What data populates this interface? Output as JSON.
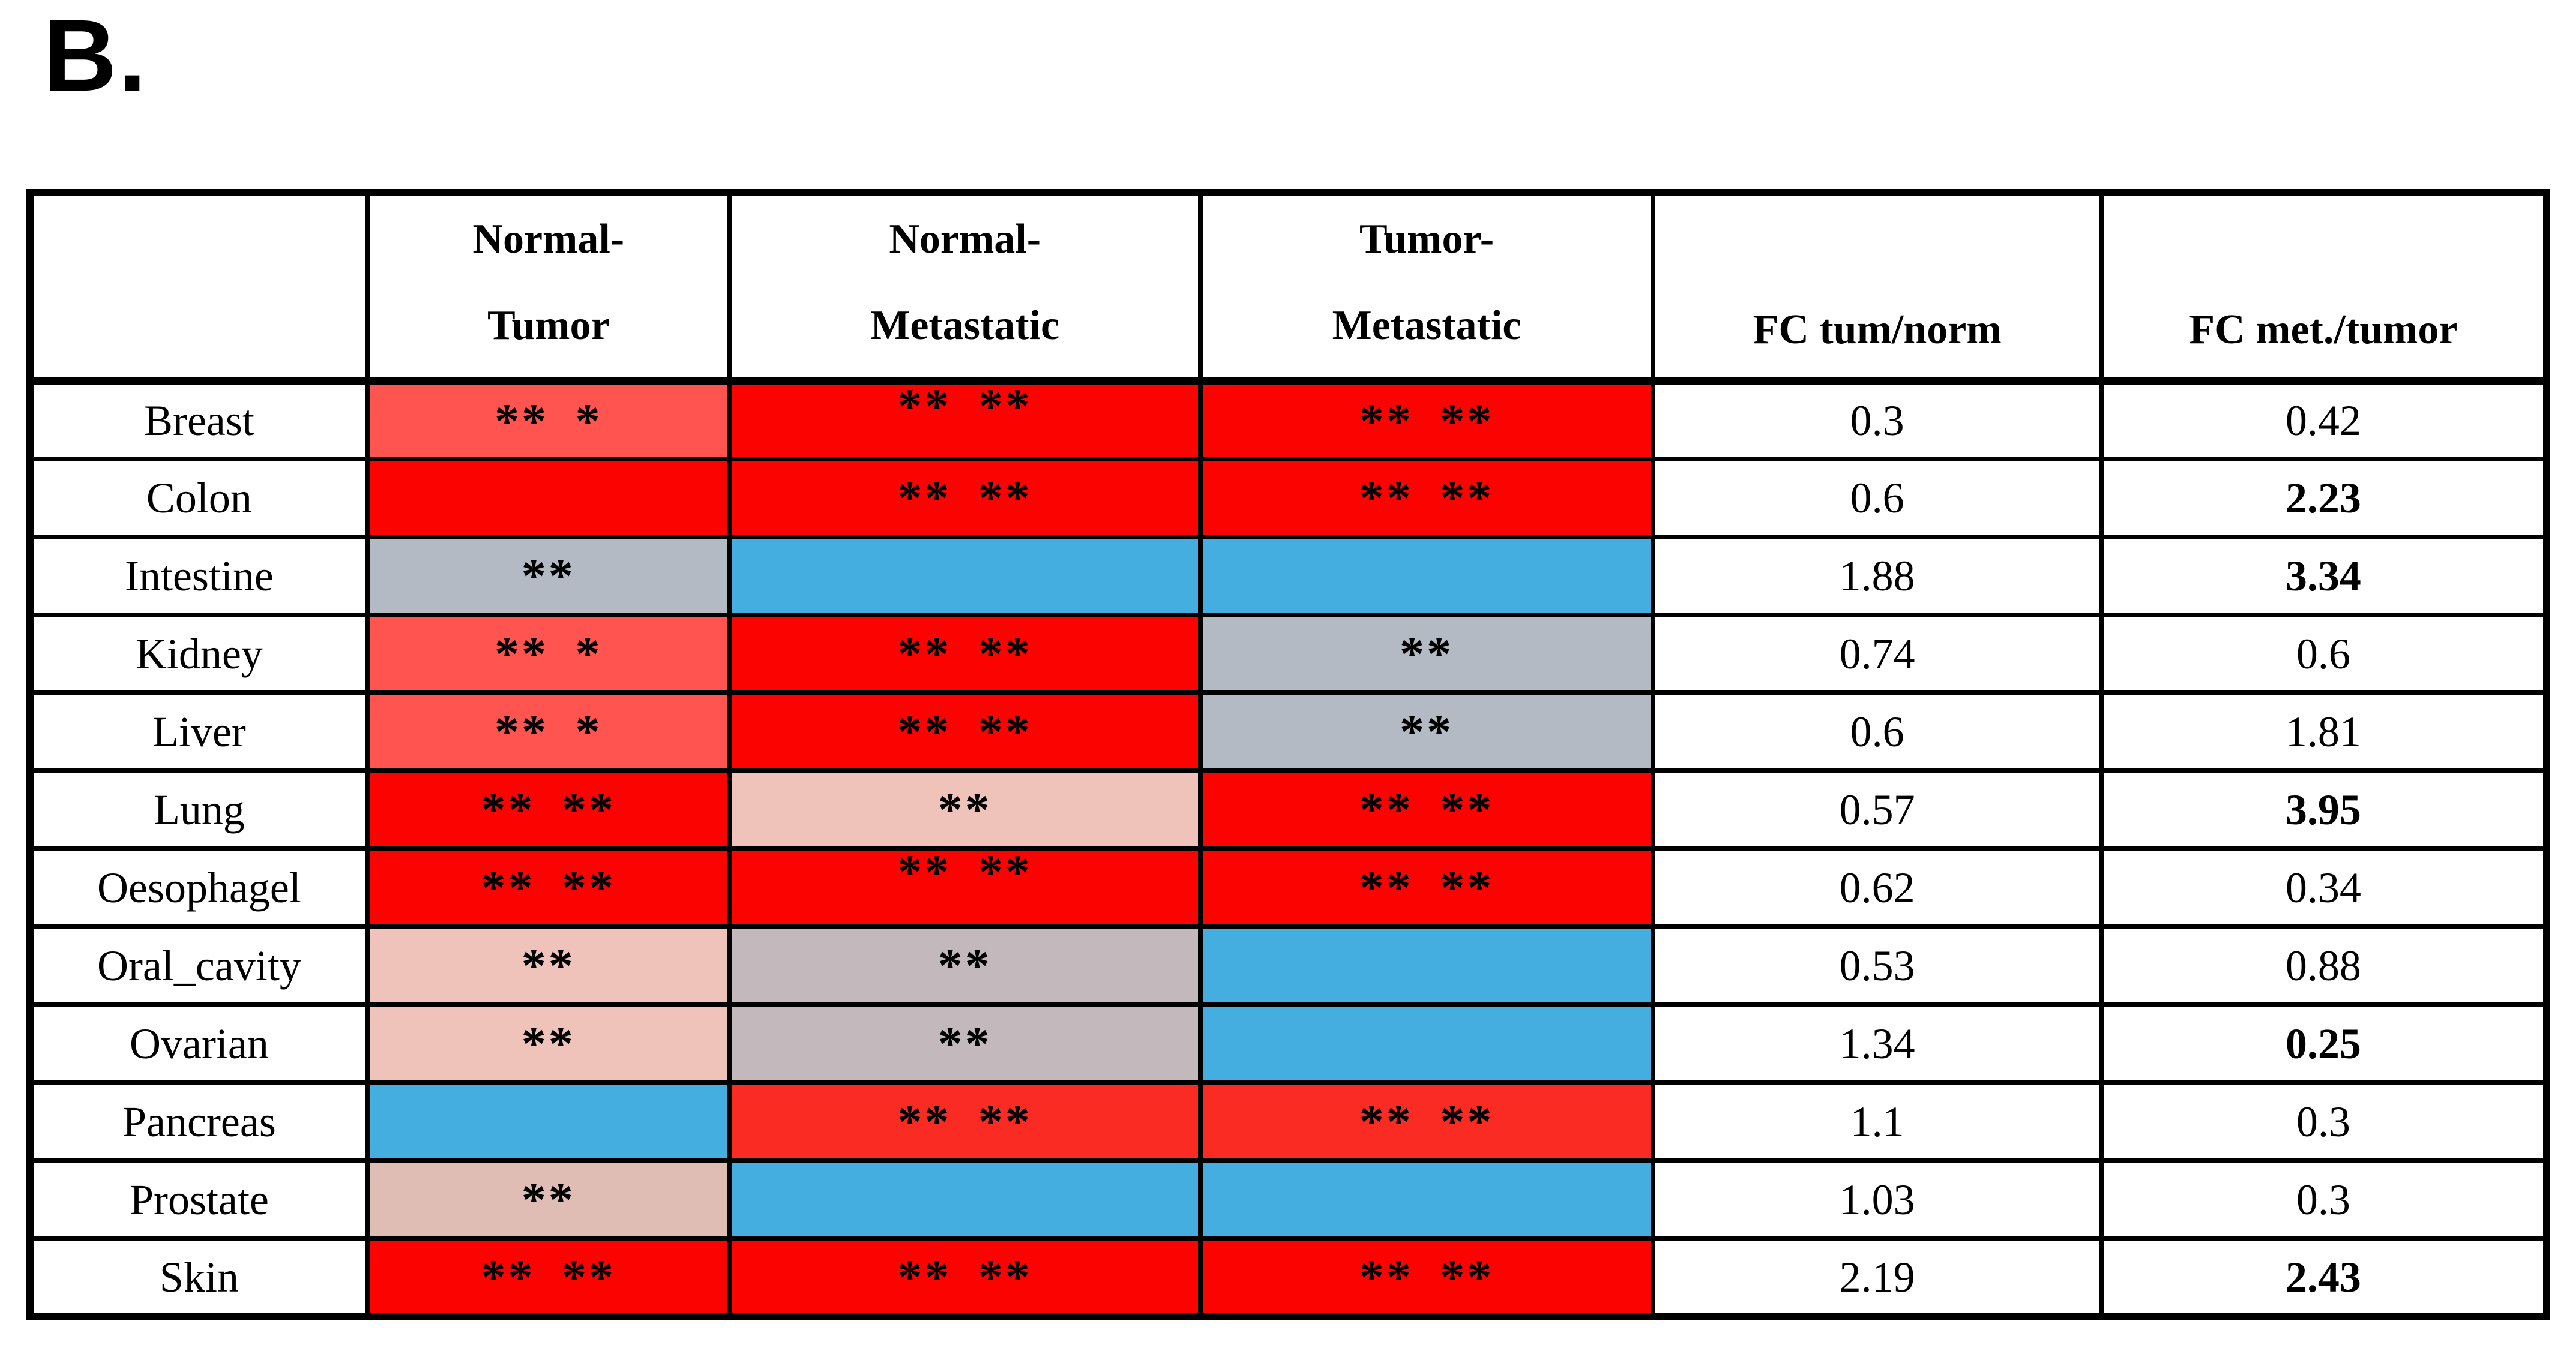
{
  "panel_label": "B.",
  "palette": {
    "brightRed": "#FB0300",
    "mediumRed": "#FF5450",
    "pancreasRed": "#F92B22",
    "palePink": "#F0C3BA",
    "dustyPink": "#DFBDB5",
    "blueGray": "#B4BAC4",
    "mauveGray": "#C3B9BD",
    "blue": "#44AEE0",
    "white": "#FFFFFF"
  },
  "table": {
    "headers": {
      "col1": {
        "line1": "Normal-",
        "line2": "Tumor"
      },
      "col2": {
        "line1": "Normal-",
        "line2": "Metastatic"
      },
      "col3": {
        "line1": "Tumor-",
        "line2": "Metastatic"
      },
      "col4": {
        "label": "FC tum/norm"
      },
      "col5": {
        "label": "FC met./tumor"
      }
    },
    "rows": [
      {
        "tissue": "Breast",
        "normal_tumor": {
          "color": "mediumRed",
          "marks": "** *",
          "align": "center"
        },
        "normal_metastatic": {
          "color": "brightRed",
          "marks": "** **",
          "align": "top"
        },
        "tumor_metastatic": {
          "color": "brightRed",
          "marks": "** **",
          "align": "center"
        },
        "fc_tum_norm": {
          "value": "0.3",
          "bold": false
        },
        "fc_met_tumor": {
          "value": "0.42",
          "bold": false
        }
      },
      {
        "tissue": "Colon",
        "normal_tumor": {
          "color": "brightRed",
          "marks": "",
          "align": "center"
        },
        "normal_metastatic": {
          "color": "brightRed",
          "marks": "** **",
          "align": "center"
        },
        "tumor_metastatic": {
          "color": "brightRed",
          "marks": "** **",
          "align": "center"
        },
        "fc_tum_norm": {
          "value": "0.6",
          "bold": false
        },
        "fc_met_tumor": {
          "value": "2.23",
          "bold": true
        }
      },
      {
        "tissue": "Intestine",
        "normal_tumor": {
          "color": "blueGray",
          "marks": "**",
          "align": "center"
        },
        "normal_metastatic": {
          "color": "blue",
          "marks": "",
          "align": "center"
        },
        "tumor_metastatic": {
          "color": "blue",
          "marks": "",
          "align": "center"
        },
        "fc_tum_norm": {
          "value": "1.88",
          "bold": false
        },
        "fc_met_tumor": {
          "value": "3.34",
          "bold": true
        }
      },
      {
        "tissue": "Kidney",
        "normal_tumor": {
          "color": "mediumRed",
          "marks": "** *",
          "align": "center"
        },
        "normal_metastatic": {
          "color": "brightRed",
          "marks": "** **",
          "align": "center"
        },
        "tumor_metastatic": {
          "color": "blueGray",
          "marks": "**",
          "align": "center"
        },
        "fc_tum_norm": {
          "value": "0.74",
          "bold": false
        },
        "fc_met_tumor": {
          "value": "0.6",
          "bold": false
        }
      },
      {
        "tissue": "Liver",
        "normal_tumor": {
          "color": "mediumRed",
          "marks": "** *",
          "align": "center"
        },
        "normal_metastatic": {
          "color": "brightRed",
          "marks": "** **",
          "align": "center"
        },
        "tumor_metastatic": {
          "color": "blueGray",
          "marks": "**",
          "align": "center"
        },
        "fc_tum_norm": {
          "value": "0.6",
          "bold": false
        },
        "fc_met_tumor": {
          "value": "1.81",
          "bold": false
        }
      },
      {
        "tissue": "Lung",
        "normal_tumor": {
          "color": "brightRed",
          "marks": "** **",
          "align": "center"
        },
        "normal_metastatic": {
          "color": "palePink",
          "marks": "**",
          "align": "center"
        },
        "tumor_metastatic": {
          "color": "brightRed",
          "marks": "** **",
          "align": "center"
        },
        "fc_tum_norm": {
          "value": "0.57",
          "bold": false
        },
        "fc_met_tumor": {
          "value": "3.95",
          "bold": true
        }
      },
      {
        "tissue": "Oesophagel",
        "normal_tumor": {
          "color": "brightRed",
          "marks": "** **",
          "align": "center"
        },
        "normal_metastatic": {
          "color": "brightRed",
          "marks": "** **",
          "align": "top"
        },
        "tumor_metastatic": {
          "color": "brightRed",
          "marks": "** **",
          "align": "center"
        },
        "fc_tum_norm": {
          "value": "0.62",
          "bold": false
        },
        "fc_met_tumor": {
          "value": "0.34",
          "bold": false
        }
      },
      {
        "tissue": "Oral_cavity",
        "normal_tumor": {
          "color": "palePink",
          "marks": "**",
          "align": "center"
        },
        "normal_metastatic": {
          "color": "mauveGray",
          "marks": "**",
          "align": "center"
        },
        "tumor_metastatic": {
          "color": "blue",
          "marks": "",
          "align": "center"
        },
        "fc_tum_norm": {
          "value": "0.53",
          "bold": false
        },
        "fc_met_tumor": {
          "value": "0.88",
          "bold": false
        }
      },
      {
        "tissue": "Ovarian",
        "normal_tumor": {
          "color": "palePink",
          "marks": "**",
          "align": "center"
        },
        "normal_metastatic": {
          "color": "mauveGray",
          "marks": "**",
          "align": "center"
        },
        "tumor_metastatic": {
          "color": "blue",
          "marks": "",
          "align": "center"
        },
        "fc_tum_norm": {
          "value": "1.34",
          "bold": false
        },
        "fc_met_tumor": {
          "value": "0.25",
          "bold": true
        }
      },
      {
        "tissue": "Pancreas",
        "normal_tumor": {
          "color": "blue",
          "marks": "",
          "align": "center"
        },
        "normal_metastatic": {
          "color": "pancreasRed",
          "marks": "** **",
          "align": "center"
        },
        "tumor_metastatic": {
          "color": "pancreasRed",
          "marks": "** **",
          "align": "center"
        },
        "fc_tum_norm": {
          "value": "1.1",
          "bold": false
        },
        "fc_met_tumor": {
          "value": "0.3",
          "bold": false
        }
      },
      {
        "tissue": "Prostate",
        "normal_tumor": {
          "color": "dustyPink",
          "marks": "**",
          "align": "center"
        },
        "normal_metastatic": {
          "color": "blue",
          "marks": "",
          "align": "center"
        },
        "tumor_metastatic": {
          "color": "blue",
          "marks": "",
          "align": "center"
        },
        "fc_tum_norm": {
          "value": "1.03",
          "bold": false
        },
        "fc_met_tumor": {
          "value": "0.3",
          "bold": false
        }
      },
      {
        "tissue": "Skin",
        "normal_tumor": {
          "color": "brightRed",
          "marks": "** **",
          "align": "center"
        },
        "normal_metastatic": {
          "color": "brightRed",
          "marks": "** **",
          "align": "center"
        },
        "tumor_metastatic": {
          "color": "brightRed",
          "marks": "** **",
          "align": "center"
        },
        "fc_tum_norm": {
          "value": "2.19",
          "bold": false
        },
        "fc_met_tumor": {
          "value": "2.43",
          "bold": true
        }
      }
    ]
  }
}
